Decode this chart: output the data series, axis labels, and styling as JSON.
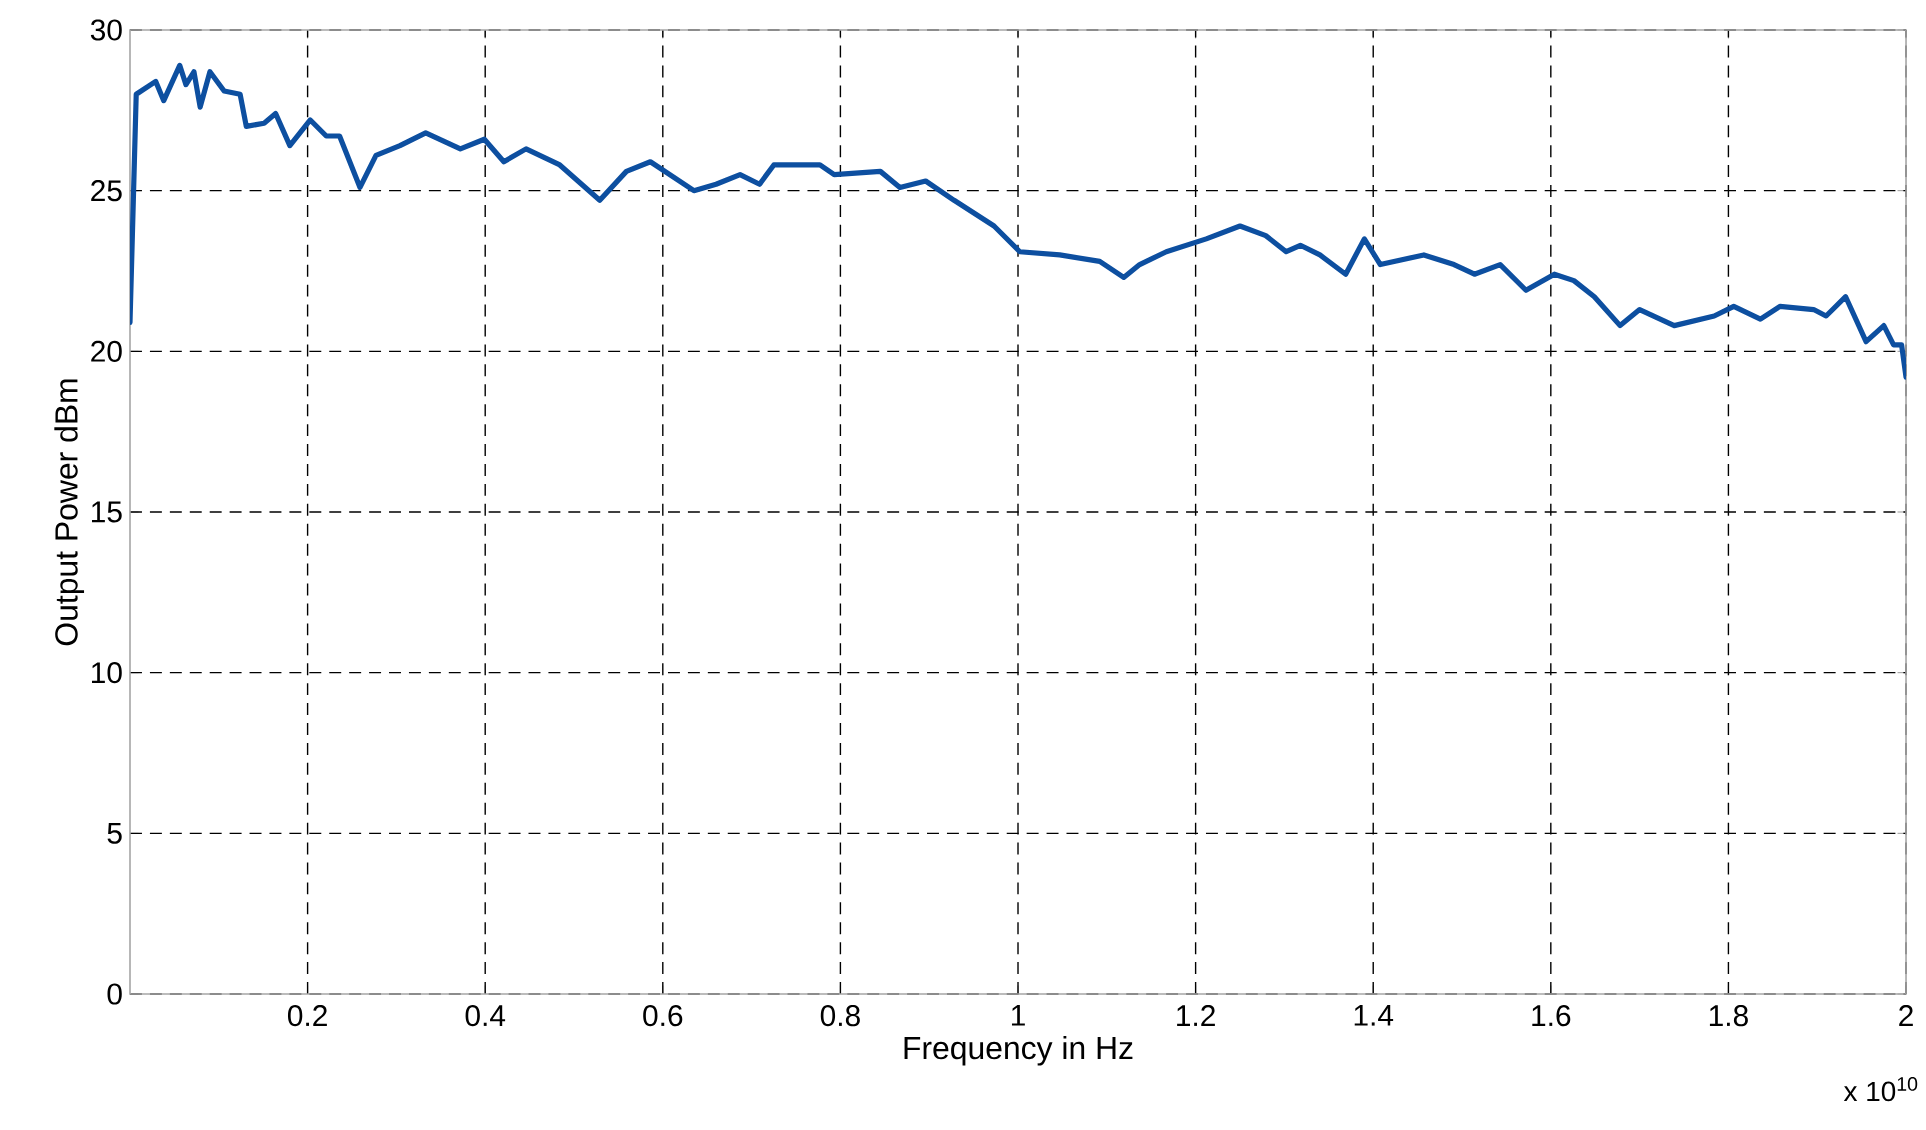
{
  "chart_data": {
    "type": "line",
    "xlabel": "Frequency in Hz",
    "ylabel": "Output Power dBm",
    "annotations": [
      "x 10$^{10}$"
    ],
    "xlim": [
      0,
      2
    ],
    "ylim": [
      0,
      30
    ],
    "xticks": [
      0.2,
      0.4,
      0.6,
      0.8,
      1,
      1.2,
      1.4,
      1.6,
      1.8,
      2
    ],
    "yticks": [
      0,
      5,
      10,
      15,
      20,
      25,
      30
    ],
    "grid": true,
    "line_style": "solid",
    "marker": "none",
    "series": [
      {
        "color": "#0d4fa0",
        "x": [
          0.0,
          0.007,
          0.029,
          0.038,
          0.056,
          0.063,
          0.072,
          0.079,
          0.09,
          0.106,
          0.124,
          0.131,
          0.151,
          0.164,
          0.18,
          0.203,
          0.221,
          0.236,
          0.259,
          0.277,
          0.304,
          0.333,
          0.372,
          0.399,
          0.421,
          0.446,
          0.484,
          0.529,
          0.559,
          0.586,
          0.635,
          0.66,
          0.687,
          0.709,
          0.725,
          0.777,
          0.793,
          0.845,
          0.867,
          0.896,
          0.928,
          0.973,
          1.002,
          1.047,
          1.092,
          1.119,
          1.137,
          1.167,
          1.212,
          1.25,
          1.279,
          1.302,
          1.318,
          1.34,
          1.369,
          1.39,
          1.408,
          1.457,
          1.491,
          1.514,
          1.543,
          1.572,
          1.604,
          1.626,
          1.649,
          1.678,
          1.7,
          1.739,
          1.784,
          1.806,
          1.836,
          1.858,
          1.896,
          1.91,
          1.932,
          1.955,
          1.975,
          1.986,
          1.995,
          2.0
        ],
        "values": [
          20.9,
          28.0,
          28.4,
          27.8,
          28.9,
          28.3,
          28.7,
          27.6,
          28.7,
          28.1,
          28.0,
          27.0,
          27.1,
          27.4,
          26.4,
          27.2,
          26.7,
          26.7,
          25.1,
          26.1,
          26.4,
          26.8,
          26.3,
          26.6,
          25.9,
          26.3,
          25.8,
          24.7,
          25.6,
          25.9,
          25.0,
          25.2,
          25.5,
          25.2,
          25.8,
          25.8,
          25.5,
          25.6,
          25.1,
          25.3,
          24.7,
          23.9,
          23.1,
          23.0,
          22.8,
          22.3,
          22.7,
          23.1,
          23.5,
          23.9,
          23.6,
          23.1,
          23.3,
          23.0,
          22.4,
          23.5,
          22.7,
          23.0,
          22.7,
          22.4,
          22.7,
          21.9,
          22.4,
          22.2,
          21.7,
          20.8,
          21.3,
          20.8,
          21.1,
          21.4,
          21.0,
          21.4,
          21.3,
          21.1,
          21.7,
          20.3,
          20.8,
          20.2,
          20.2,
          19.2
        ]
      }
    ]
  }
}
